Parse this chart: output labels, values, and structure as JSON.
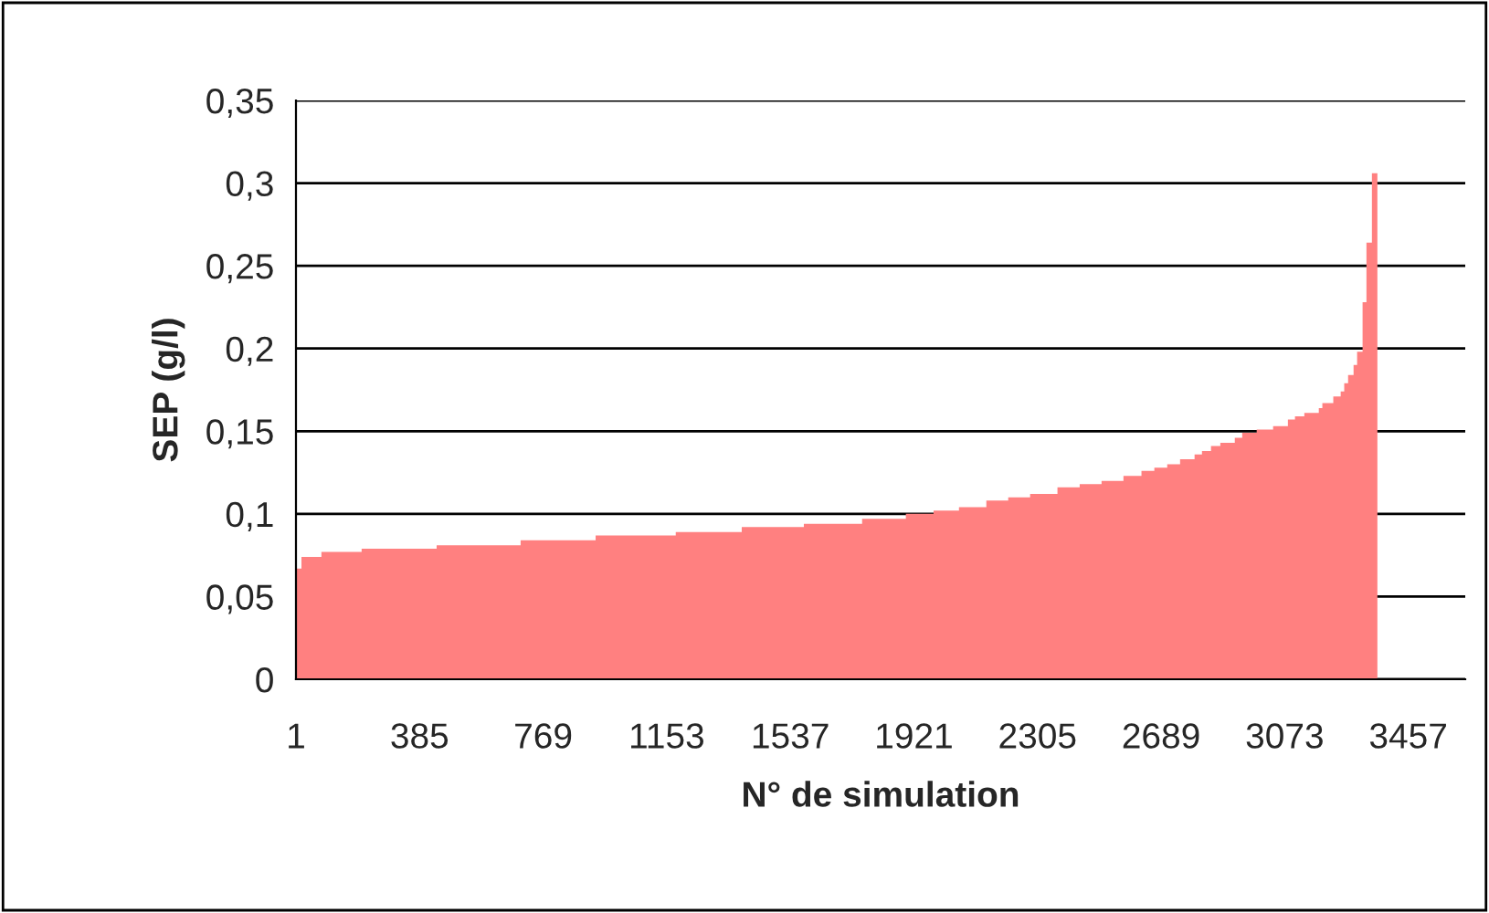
{
  "chart_data": {
    "type": "area",
    "xlabel": "N° de simulation",
    "ylabel": "SEP (g/l)",
    "series": [
      {
        "color": "#ff8080",
        "x": [
          1,
          18,
          80,
          205,
          438,
          699,
          932,
          1181,
          1386,
          1579,
          1760,
          1896,
          1982,
          2061,
          2146,
          2214,
          2282,
          2367,
          2436,
          2504,
          2572,
          2628,
          2668,
          2708,
          2748,
          2793,
          2816,
          2844,
          2873,
          2918,
          2941,
          2986,
          3037,
          3083,
          3105,
          3134,
          3179,
          3190,
          3224,
          3247,
          3258,
          3270,
          3287,
          3298,
          3315,
          3327,
          3344,
          3361
        ],
        "values": [
          0.067,
          0.074,
          0.077,
          0.079,
          0.081,
          0.084,
          0.087,
          0.089,
          0.092,
          0.094,
          0.097,
          0.1,
          0.102,
          0.104,
          0.108,
          0.11,
          0.112,
          0.116,
          0.118,
          0.12,
          0.123,
          0.126,
          0.128,
          0.13,
          0.133,
          0.136,
          0.138,
          0.141,
          0.143,
          0.146,
          0.149,
          0.151,
          0.153,
          0.157,
          0.159,
          0.161,
          0.164,
          0.167,
          0.171,
          0.174,
          0.179,
          0.184,
          0.19,
          0.198,
          0.228,
          0.264,
          0.306,
          0.306
        ]
      }
    ],
    "xlim": [
      1,
      3634
    ],
    "xticks": [
      1,
      385,
      769,
      1153,
      1537,
      1921,
      2305,
      2689,
      3073,
      3457
    ],
    "ylim": [
      0,
      0.35
    ],
    "yticks": [
      {
        "value": 0,
        "label": "0"
      },
      {
        "value": 0.05,
        "label": "0,05"
      },
      {
        "value": 0.1,
        "label": "0,1"
      },
      {
        "value": 0.15,
        "label": "0,15"
      },
      {
        "value": 0.2,
        "label": "0,2"
      },
      {
        "value": 0.25,
        "label": "0,25"
      },
      {
        "value": 0.3,
        "label": "0,3"
      },
      {
        "value": 0.35,
        "label": "0,35"
      }
    ],
    "grid": "y",
    "legend": false
  }
}
